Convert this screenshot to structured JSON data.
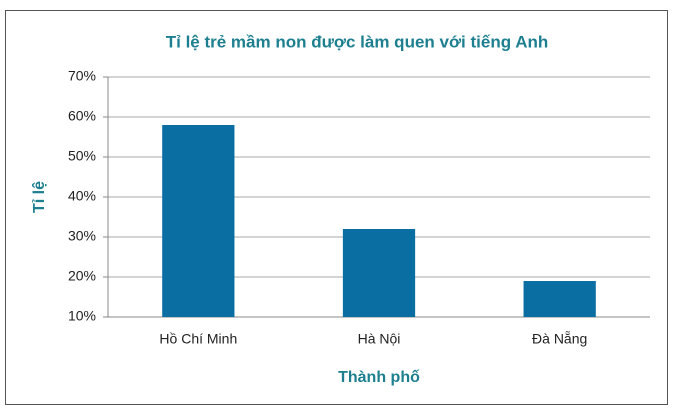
{
  "chart_data": {
    "type": "bar",
    "title": "Tỉ lệ trẻ mầm non được làm quen với tiếng Anh",
    "x_label": "Thành phố",
    "y_label": "Tỉ lệ",
    "categories": [
      "Hồ Chí Minh",
      "Hà Nội",
      "Đà Nẵng"
    ],
    "values": [
      58,
      32,
      19
    ],
    "color": "#0b6ea3",
    "ylim": [
      10,
      70
    ],
    "yticks": [
      {
        "value": 10,
        "label": "10%"
      },
      {
        "value": 20,
        "label": "20%"
      },
      {
        "value": 30,
        "label": "30%"
      },
      {
        "value": 40,
        "label": "40%"
      },
      {
        "value": 50,
        "label": "50%"
      },
      {
        "value": 60,
        "label": "60%"
      },
      {
        "value": 70,
        "label": "70%"
      }
    ],
    "grid": true
  }
}
